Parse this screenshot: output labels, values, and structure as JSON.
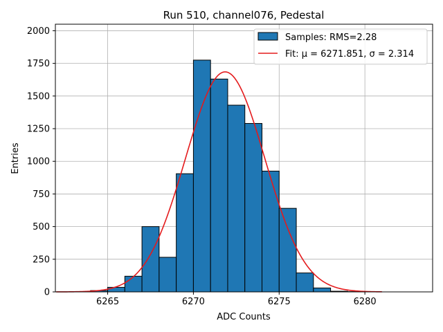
{
  "chart_data": {
    "type": "bar",
    "title": "Run 510, channel076, Pedestal",
    "xlabel": "ADC Counts",
    "ylabel": "Entries",
    "xlim": [
      6261.95,
      6283.95
    ],
    "ylim": [
      0,
      2050
    ],
    "grid": true,
    "legend_position": "top-right",
    "x_ticks": [
      6265,
      6270,
      6275,
      6280
    ],
    "y_ticks": [
      0,
      250,
      500,
      750,
      1000,
      1250,
      1500,
      1750,
      2000
    ],
    "bin_width": 1,
    "bins": {
      "left_edges": [
        6264,
        6265,
        6266,
        6267,
        6268,
        6269,
        6270,
        6271,
        6272,
        6273,
        6274,
        6275,
        6276,
        6277,
        6278,
        6279
      ],
      "counts": [
        10,
        35,
        120,
        500,
        265,
        905,
        1775,
        1630,
        1430,
        1290,
        925,
        640,
        145,
        30,
        5,
        2
      ]
    },
    "fit": {
      "mu": 6271.851,
      "sigma": 2.314,
      "x_range": [
        6262,
        6281
      ],
      "peak": 1685
    },
    "series": [
      {
        "name": "Samples: RMS=2.28",
        "kind": "histogram",
        "color": "#1f77b4",
        "edge_color": "#000000"
      },
      {
        "name": "Fit: μ = 6271.851, σ = 2.314",
        "kind": "line",
        "color": "#e41a1c"
      }
    ]
  }
}
